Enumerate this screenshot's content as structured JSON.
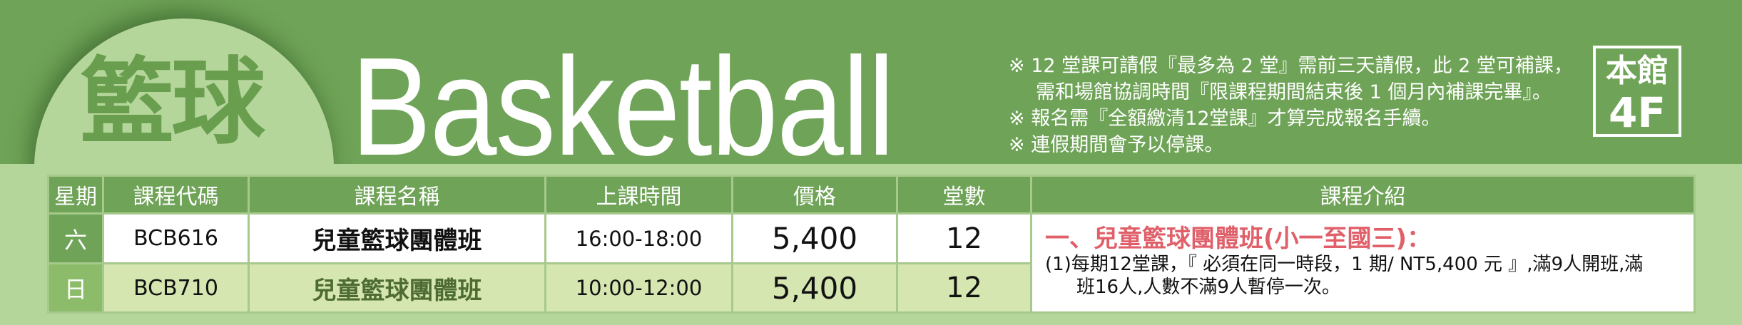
{
  "title_zh": "籃球",
  "title_en": "Basketball",
  "notes": [
    "※ 12 堂課可請假『最多為 2 堂』需前三天請假，此 2 堂可補課，",
    "需和場館協調時間『限課程期間結束後 1 個月內補課完畢』。",
    "※ 報名需『全額繳清12堂課』才算完成報名手續。",
    "※ 連假期間會予以停課。"
  ],
  "location": {
    "line1": "本館",
    "line2": "4F"
  },
  "table": {
    "headers": [
      "星期",
      "課程代碼",
      "課程名稱",
      "上課時間",
      "價格",
      "堂數",
      "課程介紹"
    ],
    "rows": [
      {
        "day": "六",
        "code": "BCB616",
        "name": "兒童籃球團體班",
        "time": "16:00-18:00",
        "price": "5,400",
        "count": "12"
      },
      {
        "day": "日",
        "code": "BCB710",
        "name": "兒童籃球團體班",
        "time": "10:00-12:00",
        "price": "5,400",
        "count": "12"
      }
    ],
    "intro": {
      "heading": "一、兒童籃球團體班(小一至國三)：",
      "line1": "(1)每期12堂課，『 必須在同一時段，1 期/ NT5,400 元 』,滿9人開班,滿",
      "line2": "班16人,人數不滿9人暫停一次。"
    }
  },
  "colors": {
    "dark_green": "#6fa357",
    "light_green": "#b5d69b",
    "row_alt": "#d5e6b0",
    "heading_red": "#e0606a"
  }
}
